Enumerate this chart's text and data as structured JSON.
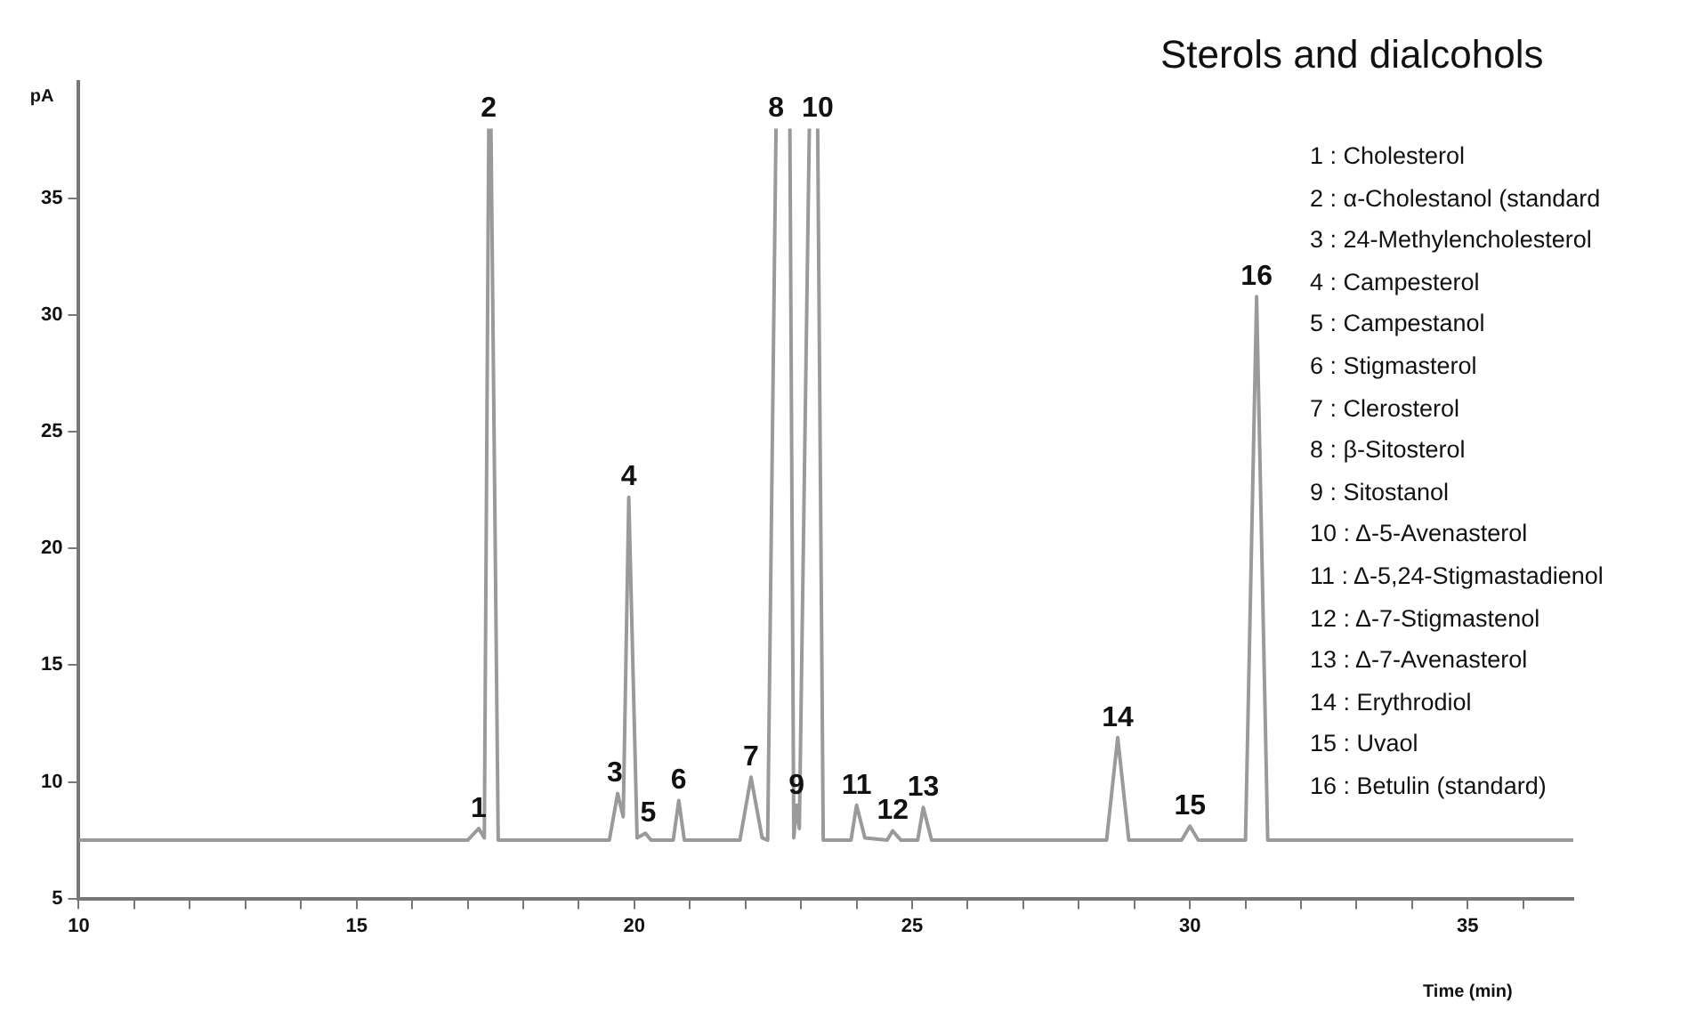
{
  "chart_data": {
    "type": "line",
    "title": "Sterols and dialcohols",
    "xlabel": "Time (min)",
    "ylabel": "pA",
    "x": [
      10,
      17.0,
      17.2,
      17.3,
      17.38,
      17.4,
      17.42,
      17.55,
      19.55,
      19.7,
      19.8,
      19.9,
      20.05,
      20.2,
      20.3,
      20.7,
      20.8,
      20.9,
      21.9,
      22.1,
      22.3,
      22.4,
      22.55,
      22.7,
      22.8,
      22.87,
      22.92,
      22.97,
      23.15,
      23.2,
      23.3,
      23.4,
      23.9,
      24.0,
      24.15,
      24.55,
      24.65,
      24.8,
      25.1,
      25.2,
      25.35,
      28.5,
      28.7,
      28.9,
      29.85,
      30.0,
      30.15,
      31.0,
      31.2,
      31.4,
      36.9
    ],
    "series": [
      {
        "color": "#9a9a9a",
        "values": [
          7.5,
          7.5,
          8.0,
          7.6,
          38,
          null,
          38,
          7.5,
          7.5,
          9.5,
          8.5,
          22.2,
          7.6,
          7.8,
          7.5,
          7.5,
          9.2,
          7.5,
          7.5,
          10.2,
          7.6,
          7.5,
          38,
          null,
          38,
          7.6,
          9.0,
          8.0,
          38,
          null,
          38,
          7.5,
          7.5,
          9.0,
          7.6,
          7.5,
          7.9,
          7.5,
          7.5,
          8.9,
          7.5,
          7.5,
          11.9,
          7.5,
          7.5,
          8.1,
          7.5,
          7.5,
          30.8,
          7.5,
          7.5
        ]
      }
    ],
    "xlim": [
      10,
      36.9
    ],
    "xticks": [
      10,
      {
        "value": 11,
        "label": null
      },
      {
        "value": 12,
        "label": null
      },
      {
        "value": 13,
        "label": null
      },
      {
        "value": 14,
        "label": null
      },
      15,
      {
        "value": 16,
        "label": null
      },
      {
        "value": 17,
        "label": null
      },
      {
        "value": 18,
        "label": null
      },
      {
        "value": 19,
        "label": null
      },
      20,
      {
        "value": 21,
        "label": null
      },
      {
        "value": 22,
        "label": null
      },
      {
        "value": 23,
        "label": null
      },
      {
        "value": 24,
        "label": null
      },
      25,
      {
        "value": 26,
        "label": null
      },
      {
        "value": 27,
        "label": null
      },
      {
        "value": 28,
        "label": null
      },
      {
        "value": 29,
        "label": null
      },
      30,
      {
        "value": 31,
        "label": null
      },
      {
        "value": 32,
        "label": null
      },
      {
        "value": 33,
        "label": null
      },
      {
        "value": 34,
        "label": null
      },
      35,
      {
        "value": 36,
        "label": null
      }
    ],
    "ylim": [
      5,
      40
    ],
    "yticks": [
      5,
      10,
      15,
      20,
      25,
      30,
      35
    ],
    "grid": false,
    "legend": false,
    "marker": "none",
    "line_style": "solid",
    "annotations": [
      {
        "text": "1",
        "x": 17.2,
        "y": 8.0
      },
      {
        "text": "2",
        "x": 17.38,
        "y": 38
      },
      {
        "text": "3",
        "x": 19.65,
        "y": 9.5
      },
      {
        "text": "4",
        "x": 19.9,
        "y": 22.2
      },
      {
        "text": "5",
        "x": 20.25,
        "y": 7.8
      },
      {
        "text": "6",
        "x": 20.8,
        "y": 9.2
      },
      {
        "text": "7",
        "x": 22.1,
        "y": 10.2
      },
      {
        "text": "8",
        "x": 22.55,
        "y": 38
      },
      {
        "text": "9",
        "x": 22.92,
        "y": 9.0
      },
      {
        "text": "10",
        "x": 23.3,
        "y": 38
      },
      {
        "text": "11",
        "x": 24.0,
        "y": 9.0
      },
      {
        "text": "12",
        "x": 24.65,
        "y": 7.9
      },
      {
        "text": "13",
        "x": 25.2,
        "y": 8.9
      },
      {
        "text": "14",
        "x": 28.7,
        "y": 11.9
      },
      {
        "text": "15",
        "x": 30.0,
        "y": 8.1
      },
      {
        "text": "16",
        "x": 31.2,
        "y": 30.8
      },
      "1 : Cholesterol",
      "2 : α-Cholestanol (standard",
      "3 : 24-Methylencholesterol",
      "4 : Campesterol",
      "5 : Campestanol",
      "6 : Stigmasterol",
      "7 : Clerosterol",
      "8 : β-Sitosterol",
      "9 : Sitostanol",
      "10 : Δ-5-Avenasterol",
      "11 : Δ-5,24-Stigmastadienol",
      "12 : Δ-7-Stigmastenol",
      "13 : Δ-7-Avenasterol",
      "14 : Erythrodiol",
      "15 : Uvaol",
      "16 : Betulin (standard)"
    ]
  }
}
